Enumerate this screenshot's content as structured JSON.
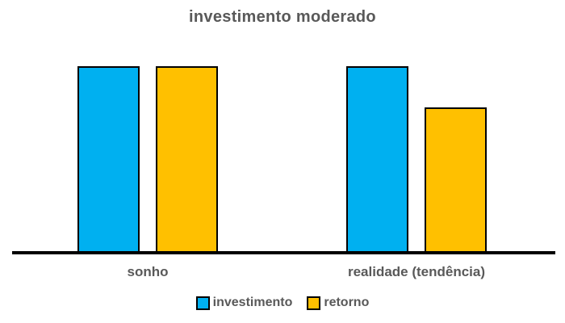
{
  "chart_data": {
    "type": "bar",
    "title": "investimento moderado",
    "categories": [
      "sonho",
      "realidade (tendência)"
    ],
    "series": [
      {
        "name": "investimento",
        "color": "#00B0F0",
        "values": [
          100,
          100
        ]
      },
      {
        "name": "retorno",
        "color": "#FFC000",
        "values": [
          100,
          78
        ]
      }
    ],
    "ylim": [
      0,
      100
    ],
    "xlabel": "",
    "ylabel": "",
    "y_axis_visible": false,
    "grid": false,
    "legend_position": "bottom",
    "bar_outline_color": "#000000",
    "axis_line_color": "#000000",
    "text_color": "#595959",
    "background_color": "#FFFFFF"
  }
}
